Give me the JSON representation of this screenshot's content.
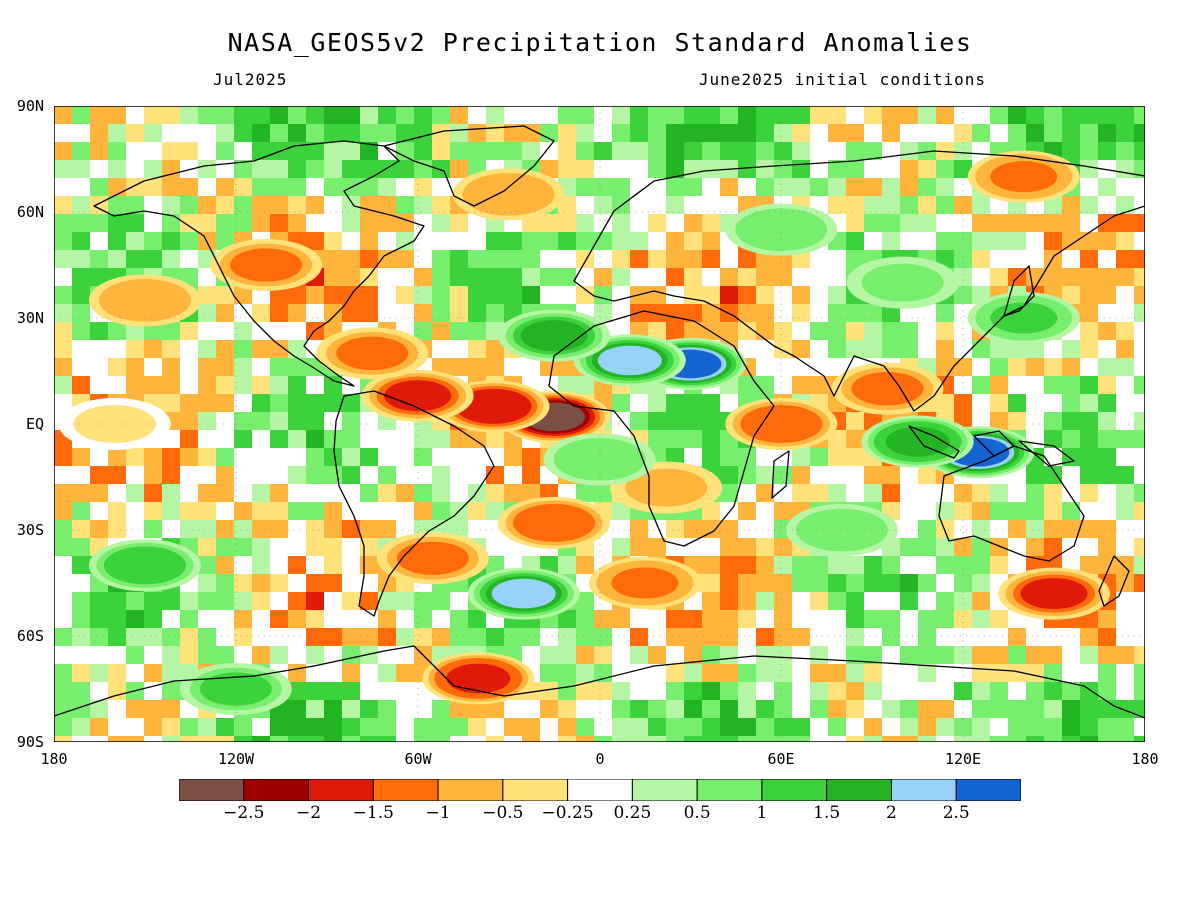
{
  "header": {
    "title": "NASA_GEOS5v2 Precipitation Standard Anomalies",
    "valid_month": "Jul2025",
    "initial_conditions": "June2025 initial conditions"
  },
  "axes": {
    "lat_ticks": [
      "90N",
      "60N",
      "30N",
      "EQ",
      "30S",
      "60S",
      "90S"
    ],
    "lon_ticks": [
      "180",
      "120W",
      "60W",
      "0",
      "60E",
      "120E",
      "180"
    ]
  },
  "colorbar": {
    "colors": [
      "#7b4f45",
      "#a00000",
      "#e01a0a",
      "#ff6a0a",
      "#ffb43c",
      "#ffe27a",
      "#ffffff",
      "#b4f6a4",
      "#78ee6e",
      "#3cd23c",
      "#22b422",
      "#96d2fa",
      "#1464d2"
    ],
    "tick_labels": [
      "−2.5",
      "−2",
      "−1.5",
      "−1",
      "−0.5",
      "−0.25",
      "0.25",
      "0.5",
      "1",
      "1.5",
      "2",
      "2.5"
    ]
  },
  "chart_data": {
    "type": "heatmap",
    "title": "NASA_GEOS5v2 Precipitation Standard Anomalies",
    "subtitle_left": "Jul2025",
    "subtitle_right": "June2025 initial conditions",
    "x_range": [
      -180,
      180
    ],
    "y_range": [
      -90,
      90
    ],
    "x_ticks": [
      -180,
      -120,
      -60,
      0,
      60,
      120,
      180
    ],
    "y_ticks": [
      90,
      60,
      30,
      0,
      -30,
      -60,
      -90
    ],
    "levels": [
      -2.5,
      -2,
      -1.5,
      -1,
      -0.5,
      -0.25,
      0.25,
      0.5,
      1,
      1.5,
      2,
      2.5
    ],
    "features": [
      {
        "lon": -15,
        "lat": 2,
        "value": -2.6
      },
      {
        "lon": -35,
        "lat": 5,
        "value": -2.0
      },
      {
        "lon": -60,
        "lat": 8,
        "value": -1.6
      },
      {
        "lon": -75,
        "lat": 20,
        "value": -1.2
      },
      {
        "lon": -110,
        "lat": 45,
        "value": -1.1
      },
      {
        "lon": -150,
        "lat": 35,
        "value": -0.8
      },
      {
        "lon": 30,
        "lat": 17,
        "value": 2.6
      },
      {
        "lon": 10,
        "lat": 18,
        "value": 2.2
      },
      {
        "lon": -15,
        "lat": 25,
        "value": 1.5
      },
      {
        "lon": 60,
        "lat": 0,
        "value": -1.4
      },
      {
        "lon": 95,
        "lat": 10,
        "value": -1.2
      },
      {
        "lon": 125,
        "lat": -8,
        "value": 2.6
      },
      {
        "lon": 105,
        "lat": -5,
        "value": 1.8
      },
      {
        "lon": 22,
        "lat": -18,
        "value": -0.6
      },
      {
        "lon": -15,
        "lat": -28,
        "value": -1.5
      },
      {
        "lon": -55,
        "lat": -38,
        "value": -1.2
      },
      {
        "lon": -25,
        "lat": -48,
        "value": 2.2
      },
      {
        "lon": 15,
        "lat": -45,
        "value": -1.3
      },
      {
        "lon": 150,
        "lat": -48,
        "value": -1.6
      },
      {
        "lon": -40,
        "lat": -72,
        "value": -1.8
      },
      {
        "lon": -150,
        "lat": -40,
        "value": 1.4
      },
      {
        "lon": -120,
        "lat": -75,
        "value": 1.2
      },
      {
        "lon": 60,
        "lat": 55,
        "value": 0.8
      },
      {
        "lon": 140,
        "lat": 70,
        "value": -1.3
      },
      {
        "lon": -30,
        "lat": 65,
        "value": -1.0
      },
      {
        "lon": 100,
        "lat": 40,
        "value": 0.7
      },
      {
        "lon": 140,
        "lat": 30,
        "value": 1.3
      },
      {
        "lon": 0,
        "lat": -10,
        "value": 0.9
      },
      {
        "lon": -160,
        "lat": 0,
        "value": -0.4
      },
      {
        "lon": 80,
        "lat": -30,
        "value": 0.9
      }
    ]
  }
}
